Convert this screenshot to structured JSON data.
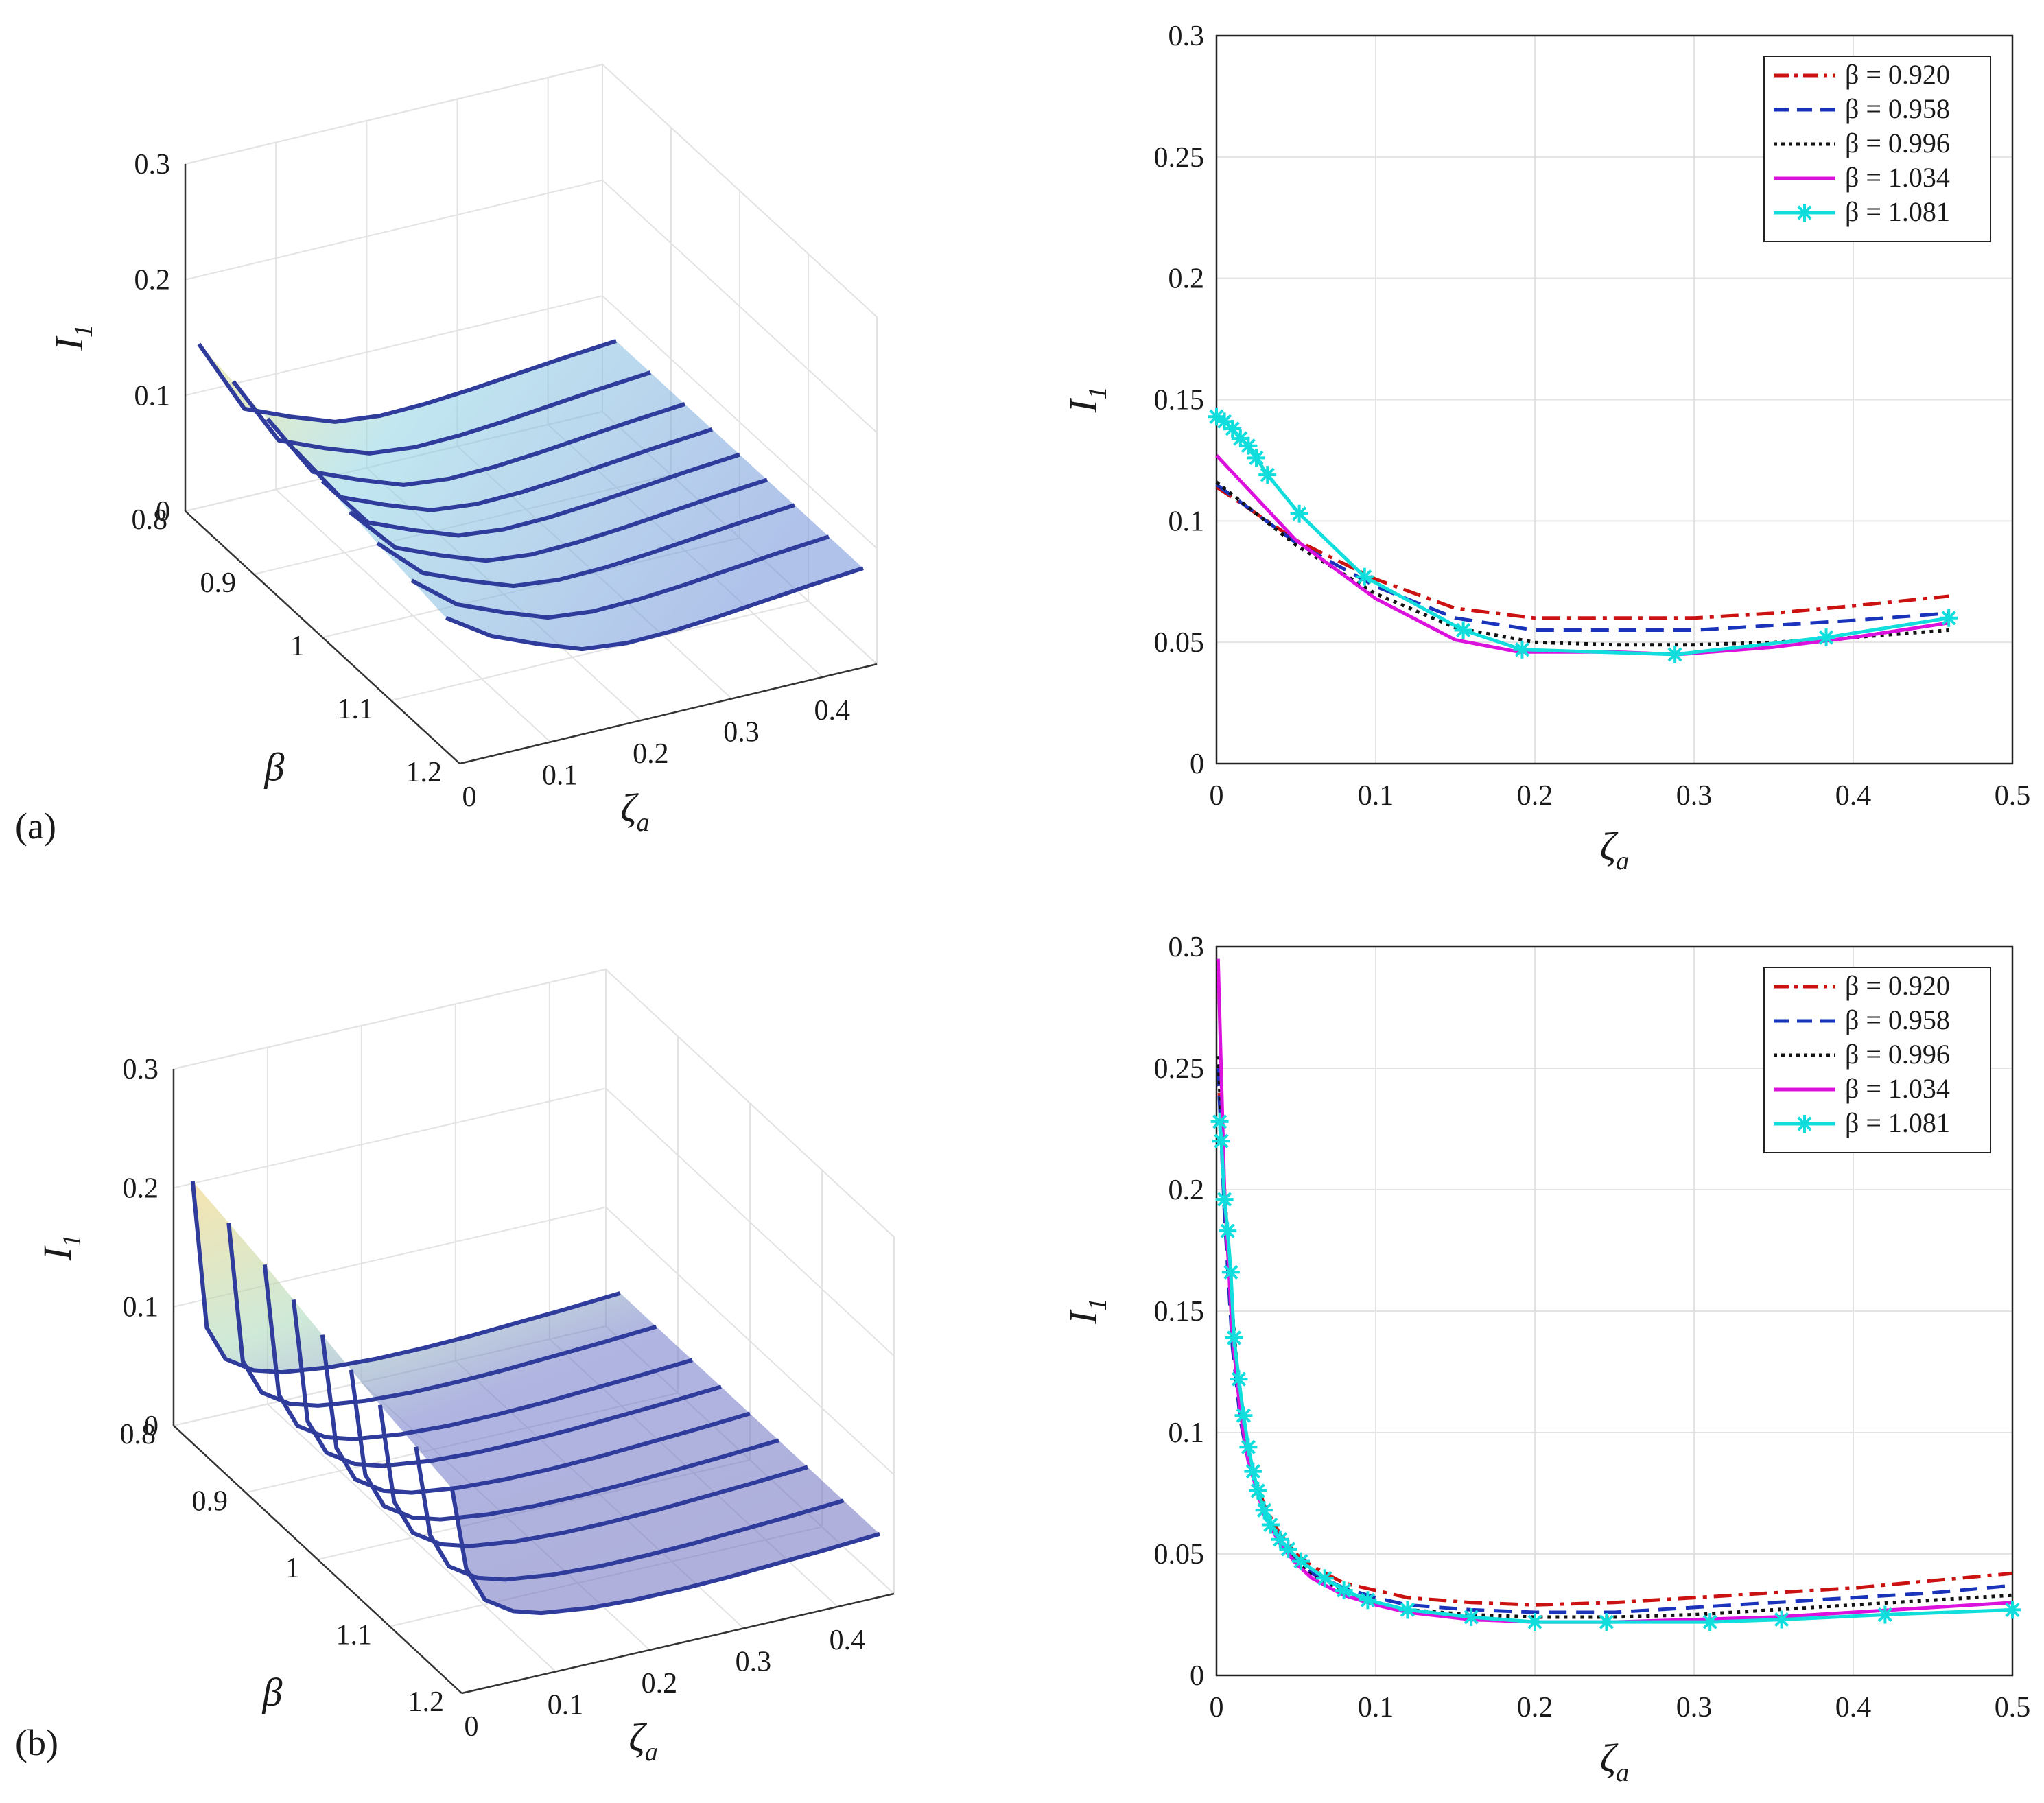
{
  "panels": [
    "(a)",
    "(b)"
  ],
  "surface_labels": {
    "zlabel": "I",
    "zlabel_sub": "1",
    "xlabel": "ζ",
    "xlabel_sub": "a",
    "ylabel": "β",
    "z_ticks": [
      "0",
      "0.1",
      "0.2",
      "0.3"
    ],
    "x_ticks": [
      "0",
      "0.1",
      "0.2",
      "0.3",
      "0.4"
    ],
    "y_ticks": [
      "0.8",
      "0.9",
      "1",
      "1.1",
      "1.2"
    ]
  },
  "colors": {
    "beta_0920": "#cc1111",
    "beta_0958": "#1a33bb",
    "beta_0996": "#111111",
    "beta_1034": "#dd11dd",
    "beta_1081": "#11dddd",
    "grid": "#e3e3e3",
    "surface_curve": "#2f3c9c"
  },
  "chart_data": [
    {
      "id": "a-3d",
      "type": "surface",
      "title": "",
      "xlabel": "ζa",
      "ylabel": "β",
      "zlabel": "I1",
      "xlim": [
        0,
        0.46
      ],
      "ylim": [
        0.8,
        1.2
      ],
      "zlim": [
        0,
        0.3
      ],
      "beta_curves": [
        0.82,
        0.87,
        0.92,
        0.96,
        1.0,
        1.04,
        1.08,
        1.13,
        1.18
      ],
      "x": [
        0,
        0.05,
        0.1,
        0.15,
        0.2,
        0.25,
        0.3,
        0.35,
        0.4,
        0.46
      ],
      "z_shape": [
        0.115,
        0.09,
        0.074,
        0.06,
        0.056,
        0.057,
        0.06,
        0.064,
        0.068,
        0.072
      ]
    },
    {
      "id": "a-2d",
      "type": "line",
      "title": "",
      "xlabel": "ζa",
      "ylabel": "I1",
      "xlim": [
        0,
        0.5
      ],
      "ylim": [
        0,
        0.3
      ],
      "x_ticks": [
        "0",
        "0.1",
        "0.2",
        "0.3",
        "0.4",
        "0.5"
      ],
      "y_ticks": [
        "0",
        "0.05",
        "0.1",
        "0.15",
        "0.2",
        "0.25",
        "0.3"
      ],
      "legend": "top-right",
      "series": [
        {
          "name": "β = 0.920",
          "style": "dashdot",
          "color": "#cc1111",
          "x": [
            0,
            0.05,
            0.1,
            0.15,
            0.2,
            0.25,
            0.3,
            0.35,
            0.4,
            0.46
          ],
          "y": [
            0.114,
            0.092,
            0.076,
            0.064,
            0.06,
            0.06,
            0.06,
            0.062,
            0.065,
            0.069
          ]
        },
        {
          "name": "β = 0.958",
          "style": "dashed",
          "color": "#1a33bb",
          "x": [
            0,
            0.05,
            0.1,
            0.15,
            0.2,
            0.25,
            0.3,
            0.35,
            0.4,
            0.46
          ],
          "y": [
            0.115,
            0.091,
            0.073,
            0.06,
            0.055,
            0.055,
            0.055,
            0.057,
            0.059,
            0.062
          ]
        },
        {
          "name": "β = 0.996",
          "style": "dotted",
          "color": "#111111",
          "x": [
            0,
            0.05,
            0.1,
            0.15,
            0.2,
            0.25,
            0.3,
            0.35,
            0.4,
            0.46
          ],
          "y": [
            0.116,
            0.09,
            0.07,
            0.056,
            0.05,
            0.049,
            0.049,
            0.05,
            0.052,
            0.055
          ]
        },
        {
          "name": "β = 1.034",
          "style": "solid",
          "color": "#dd11dd",
          "x": [
            0,
            0.05,
            0.1,
            0.15,
            0.19,
            0.25,
            0.29,
            0.35,
            0.4,
            0.46
          ],
          "y": [
            0.127,
            0.092,
            0.068,
            0.051,
            0.046,
            0.046,
            0.045,
            0.048,
            0.052,
            0.058
          ]
        },
        {
          "name": "β = 1.081",
          "style": "solid-star",
          "color": "#11dddd",
          "x": [
            0,
            0.005,
            0.01,
            0.015,
            0.02,
            0.025,
            0.032,
            0.052,
            0.093,
            0.155,
            0.192,
            0.288,
            0.383,
            0.46
          ],
          "y": [
            0.143,
            0.141,
            0.138,
            0.134,
            0.131,
            0.126,
            0.119,
            0.103,
            0.077,
            0.055,
            0.047,
            0.045,
            0.052,
            0.06
          ]
        }
      ]
    },
    {
      "id": "b-3d",
      "type": "surface",
      "title": "",
      "xlabel": "ζa",
      "ylabel": "β",
      "zlabel": "I1",
      "xlim": [
        0,
        0.46
      ],
      "ylim": [
        0.8,
        1.2
      ],
      "zlim": [
        0,
        0.3
      ],
      "beta_curves": [
        0.82,
        0.87,
        0.92,
        0.96,
        1.0,
        1.04,
        1.08,
        1.13,
        1.18
      ],
      "x": [
        0.005,
        0.02,
        0.04,
        0.07,
        0.1,
        0.15,
        0.2,
        0.25,
        0.3,
        0.35,
        0.4,
        0.46
      ],
      "z_shape": [
        0.16,
        0.09,
        0.06,
        0.045,
        0.038,
        0.033,
        0.031,
        0.031,
        0.032,
        0.034,
        0.036,
        0.039
      ]
    },
    {
      "id": "b-2d",
      "type": "line",
      "title": "",
      "xlabel": "ζa",
      "ylabel": "I1",
      "xlim": [
        0,
        0.5
      ],
      "ylim": [
        0,
        0.3
      ],
      "x_ticks": [
        "0",
        "0.1",
        "0.2",
        "0.3",
        "0.4",
        "0.5"
      ],
      "y_ticks": [
        "0",
        "0.05",
        "0.1",
        "0.15",
        "0.2",
        "0.25",
        "0.3"
      ],
      "legend": "top-right",
      "series": [
        {
          "name": "β = 0.920",
          "style": "dashdot",
          "color": "#cc1111",
          "x": [
            0.001,
            0.005,
            0.01,
            0.015,
            0.02,
            0.03,
            0.04,
            0.05,
            0.06,
            0.08,
            0.1,
            0.12,
            0.16,
            0.2,
            0.25,
            0.3,
            0.35,
            0.4,
            0.45,
            0.5
          ],
          "y": [
            0.25,
            0.2,
            0.14,
            0.11,
            0.09,
            0.07,
            0.058,
            0.05,
            0.045,
            0.038,
            0.035,
            0.032,
            0.03,
            0.029,
            0.03,
            0.032,
            0.034,
            0.036,
            0.039,
            0.042
          ]
        },
        {
          "name": "β = 0.958",
          "style": "dashed",
          "color": "#1a33bb",
          "x": [
            0.001,
            0.005,
            0.01,
            0.015,
            0.02,
            0.03,
            0.04,
            0.05,
            0.06,
            0.08,
            0.1,
            0.12,
            0.16,
            0.2,
            0.25,
            0.3,
            0.35,
            0.4,
            0.45,
            0.5
          ],
          "y": [
            0.25,
            0.19,
            0.135,
            0.105,
            0.088,
            0.068,
            0.056,
            0.048,
            0.042,
            0.036,
            0.032,
            0.029,
            0.027,
            0.026,
            0.026,
            0.028,
            0.03,
            0.032,
            0.034,
            0.037
          ]
        },
        {
          "name": "β = 0.996",
          "style": "dotted",
          "color": "#111111",
          "x": [
            0.001,
            0.005,
            0.01,
            0.015,
            0.02,
            0.03,
            0.04,
            0.05,
            0.06,
            0.08,
            0.1,
            0.12,
            0.16,
            0.2,
            0.25,
            0.3,
            0.35,
            0.4,
            0.45,
            0.5
          ],
          "y": [
            0.255,
            0.2,
            0.15,
            0.11,
            0.09,
            0.068,
            0.055,
            0.047,
            0.041,
            0.034,
            0.03,
            0.027,
            0.025,
            0.024,
            0.024,
            0.025,
            0.027,
            0.029,
            0.031,
            0.033
          ]
        },
        {
          "name": "β = 1.034",
          "style": "solid",
          "color": "#dd11dd",
          "x": [
            0.001,
            0.005,
            0.01,
            0.015,
            0.02,
            0.03,
            0.04,
            0.05,
            0.06,
            0.08,
            0.1,
            0.12,
            0.16,
            0.2,
            0.25,
            0.3,
            0.35,
            0.4,
            0.45,
            0.5
          ],
          "y": [
            0.295,
            0.2,
            0.14,
            0.108,
            0.088,
            0.066,
            0.054,
            0.046,
            0.04,
            0.033,
            0.029,
            0.026,
            0.023,
            0.022,
            0.022,
            0.023,
            0.024,
            0.026,
            0.028,
            0.03
          ]
        },
        {
          "name": "β = 1.081",
          "style": "solid-star",
          "color": "#11dddd",
          "x": [
            0.002,
            0.003,
            0.005,
            0.007,
            0.009,
            0.011,
            0.014,
            0.017,
            0.02,
            0.023,
            0.026,
            0.03,
            0.034,
            0.04,
            0.045,
            0.053,
            0.068,
            0.08,
            0.095,
            0.12,
            0.16,
            0.2,
            0.245,
            0.31,
            0.355,
            0.42,
            0.5
          ],
          "y": [
            0.228,
            0.22,
            0.196,
            0.183,
            0.166,
            0.139,
            0.122,
            0.107,
            0.094,
            0.084,
            0.076,
            0.068,
            0.062,
            0.056,
            0.052,
            0.047,
            0.04,
            0.035,
            0.031,
            0.027,
            0.024,
            0.022,
            0.022,
            0.022,
            0.023,
            0.025,
            0.027
          ]
        }
      ]
    }
  ]
}
